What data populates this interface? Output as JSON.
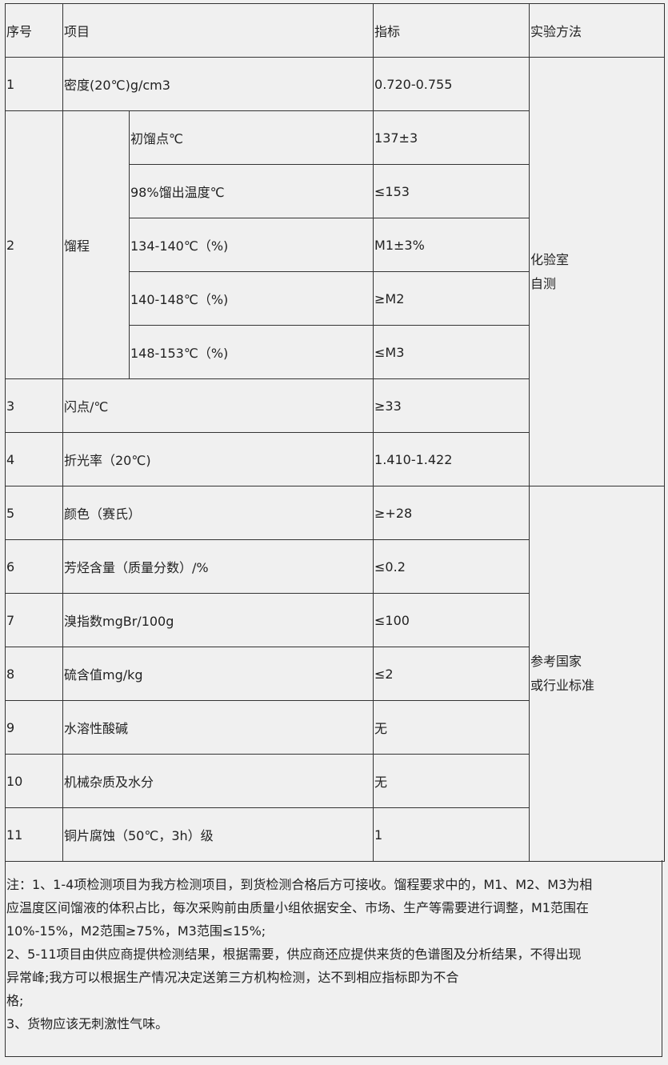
{
  "header": {
    "no": "序号",
    "item": "项目",
    "spec": "指标",
    "method": "实验方法"
  },
  "rows": [
    {
      "no": "1",
      "item": "密度(20℃)g/cm3",
      "spec": "0.720-0.755"
    },
    {
      "no": "2",
      "item": "馏程",
      "sub": [
        {
          "item": "初馏点℃",
          "spec": "137±3"
        },
        {
          "item": "98%馏出温度℃",
          "spec": "≤153"
        },
        {
          "item": "134-140℃（%)",
          "spec": "M1±3%"
        },
        {
          "item": "140-148℃（%)",
          "spec": "≥M2"
        },
        {
          "item": "148-153℃（%)",
          "spec": "≤M3"
        }
      ]
    },
    {
      "no": "3",
      "item": "闪点/℃",
      "spec": "≥33"
    },
    {
      "no": "4",
      "item": "折光率（20℃)",
      "spec": "1.410-1.422"
    },
    {
      "no": "5",
      "item": "颜色（赛氏）",
      "spec": "≥+28"
    },
    {
      "no": "6",
      "item": "芳烃含量（质量分数）/%",
      "spec": "≤0.2"
    },
    {
      "no": "7",
      "item": "溴指数mgBr/100g",
      "spec": "≤100"
    },
    {
      "no": "8",
      "item": "硫含值mg/kg",
      "spec": "≤2"
    },
    {
      "no": "9",
      "item": "水溶性酸碱",
      "spec": "无"
    },
    {
      "no": "10",
      "item": "机械杂质及水分",
      "spec": "无"
    },
    {
      "no": "11",
      "item": "铜片腐蚀（50℃，3h）级",
      "spec": "1"
    }
  ],
  "methods": {
    "lab": [
      "化验室",
      "自测"
    ],
    "standard": [
      "参考国家",
      "或行业标准"
    ]
  },
  "notes": [
    "注：1、1-4项检测项目为我方检测项目，到货检测合格后方可接收。馏程要求中的，M1、M2、M3为相",
    "应温度区间馏液的体积占比，每次采购前由质量小组依据安全、市场、生产等需要进行调整，M1范围在",
    "10%-15%，M2范围≥75%，M3范围≤15%;",
    "2、5-11项目由供应商提供检测结果，根据需要，供应商还应提供来货的色谱图及分析结果，不得出现",
    "异常峰;我方可以根据生产情况决定送第三方机构检测，达不到相应指标即为不合",
    "格;",
    "3、货物应该无刺激性气味。"
  ]
}
